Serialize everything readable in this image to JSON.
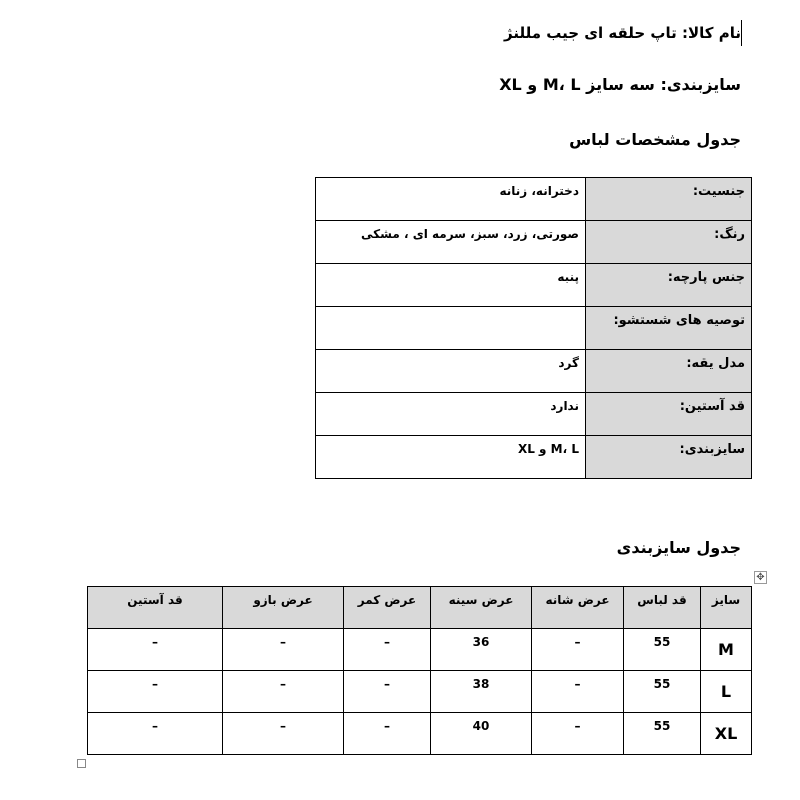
{
  "document": {
    "product_name_line": "نام کالا: تاپ حلقه ای جیب مللنژ",
    "sizing_line": "سایزبندی: سه سایز M، L و XL",
    "spec_table_title": "جدول مشخصات لباس",
    "size_table_title": "جدول سایزبندی"
  },
  "spec_table": {
    "rows": [
      {
        "label": "جنسیت:",
        "value": "دخترانه، زنانه"
      },
      {
        "label": "رنگ:",
        "value": "صورتی، زرد، سبز، سرمه ای ، مشکی"
      },
      {
        "label": "جنس پارچه:",
        "value": "پنبه"
      },
      {
        "label": "توصیه های شستشو:",
        "value": ""
      },
      {
        "label": "مدل یقه:",
        "value": "گرد"
      },
      {
        "label": "قد آستین:",
        "value": "ندارد"
      },
      {
        "label": "سایزبندی:",
        "value": "M، L و XL"
      }
    ]
  },
  "size_table": {
    "headers": [
      "سایز",
      "قد لباس",
      "عرض شانه",
      "عرض سینه",
      "عرض کمر",
      "عرض بازو",
      "قد آستین"
    ],
    "rows": [
      [
        "M",
        "55",
        "–",
        "36",
        "–",
        "–",
        "–"
      ],
      [
        "L",
        "55",
        "–",
        "38",
        "–",
        "–",
        "–"
      ],
      [
        "XL",
        "55",
        "–",
        "40",
        "–",
        "–",
        "–"
      ]
    ]
  },
  "colors": {
    "header_fill": "#d9d9d9",
    "border": "#000000"
  },
  "icons": {
    "table_move_handle": "move-arrows-icon",
    "table_resize_handle": "resize-square-icon"
  }
}
